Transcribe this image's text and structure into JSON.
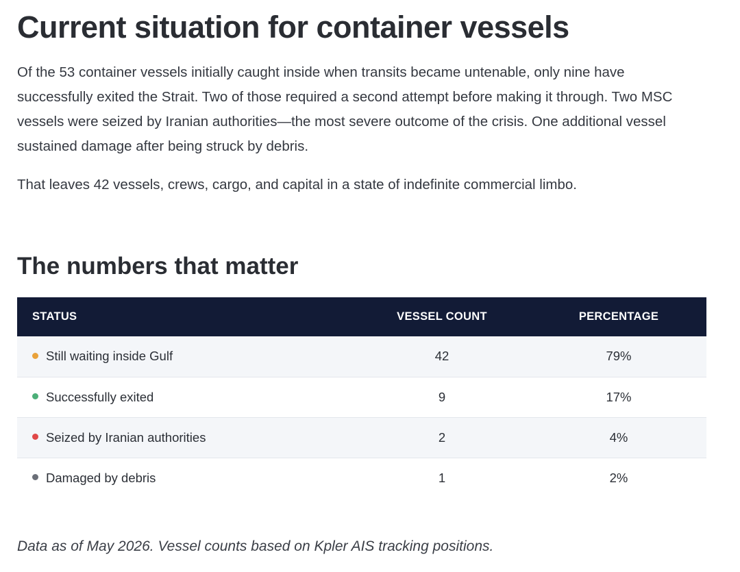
{
  "heading": "Current situation for container vessels",
  "intro": "Of the 53 container vessels initially caught inside when transits became untenable, only nine have successfully exited the Strait. Two of those required a second attempt before making it through. Two MSC vessels were seized by Iranian authorities—the most severe outcome of the crisis. One additional vessel sustained damage after being struck by debris.",
  "summary": "That leaves 42 vessels, crews, cargo, and capital in a state of indefinite commercial limbo.",
  "subheading": "The numbers that matter",
  "table": {
    "headers": {
      "status": "STATUS",
      "count": "VESSEL COUNT",
      "percentage": "PERCENTAGE"
    },
    "rows": [
      {
        "status": "Still waiting inside Gulf",
        "count": "42",
        "percentage": "79%",
        "dot_color": "#e9a23b"
      },
      {
        "status": "Successfully exited",
        "count": "9",
        "percentage": "17%",
        "dot_color": "#4caf78"
      },
      {
        "status": "Seized by Iranian authorities",
        "count": "2",
        "percentage": "4%",
        "dot_color": "#e04848"
      },
      {
        "status": "Damaged by debris",
        "count": "1",
        "percentage": "2%",
        "dot_color": "#6b6f78"
      }
    ]
  },
  "footnote": "Data as of May 2026. Vessel counts based on Kpler AIS tracking positions.",
  "colors": {
    "header_bg": "#121b36",
    "row_shade": "#f4f6f9"
  }
}
